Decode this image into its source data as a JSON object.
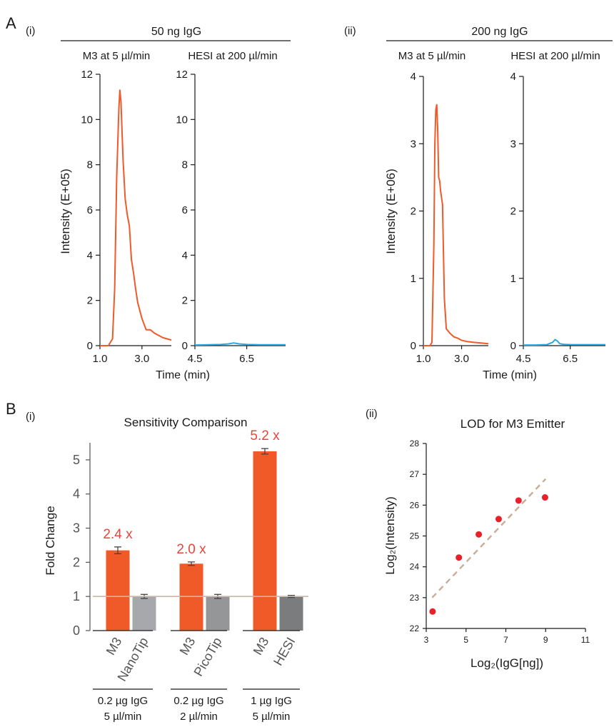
{
  "labels": {
    "A": "A",
    "A_i": "(i)",
    "A_ii": "(ii)",
    "B": "B",
    "B_i": "(i)",
    "B_ii": "(ii)"
  },
  "chart_data": [
    {
      "type": "line",
      "group_title": "50 ng IgG",
      "title": "M3 at 5 µl/min",
      "ylabel": "Intensity (E+05)",
      "xlabel": "",
      "ylim": [
        0,
        12
      ],
      "yticks": [
        "0",
        "2",
        "4",
        "6",
        "8",
        "10",
        "12"
      ],
      "xlim": [
        1.0,
        4.4
      ],
      "xticks": [
        "1.0",
        "3.0"
      ],
      "color": "#f05a28",
      "series": [
        {
          "x": [
            1.0,
            1.4,
            1.6,
            1.7,
            1.8,
            1.9,
            1.95,
            2.0,
            2.05,
            2.1,
            2.2,
            2.3,
            2.4,
            2.5,
            2.6,
            2.7,
            2.8,
            3.0,
            3.2,
            3.4,
            3.6,
            3.8,
            4.0,
            4.2,
            4.4
          ],
          "y": [
            0,
            0,
            0.3,
            2.5,
            7.5,
            10.5,
            11.3,
            10.8,
            9.5,
            8.2,
            6.5,
            5.8,
            5.3,
            3.8,
            3.2,
            2.5,
            1.9,
            1.2,
            0.7,
            0.7,
            0.55,
            0.45,
            0.35,
            0.3,
            0.25
          ]
        }
      ]
    },
    {
      "type": "line",
      "title": "HESI at 200 µl/min",
      "ylabel": "",
      "xlabel": "Time (min)",
      "ylim": [
        0,
        12
      ],
      "yticks": [
        "0",
        "2",
        "4",
        "6",
        "8",
        "10",
        "12"
      ],
      "xlim": [
        4.5,
        8.0
      ],
      "xticks": [
        "4.5",
        "6.5"
      ],
      "color": "#29a9e0",
      "series": [
        {
          "x": [
            4.5,
            5.0,
            5.5,
            5.8,
            6.0,
            6.2,
            6.5,
            7.0,
            7.5,
            8.0
          ],
          "y": [
            0.03,
            0.04,
            0.05,
            0.08,
            0.12,
            0.08,
            0.05,
            0.04,
            0.04,
            0.04
          ]
        }
      ]
    },
    {
      "type": "line",
      "group_title": "200 ng IgG",
      "title": "M3 at 5 µl/min",
      "ylabel": "Intensity (E+06)",
      "xlabel": "",
      "ylim": [
        0,
        4
      ],
      "yticks": [
        "0",
        "1",
        "2",
        "3",
        "4"
      ],
      "xlim": [
        1.0,
        4.4
      ],
      "xticks": [
        "1.0",
        "3.0"
      ],
      "color": "#f05a28",
      "series": [
        {
          "x": [
            1.0,
            1.35,
            1.45,
            1.55,
            1.6,
            1.65,
            1.7,
            1.75,
            1.8,
            1.85,
            1.9,
            2.0,
            2.05,
            2.1,
            2.2,
            2.4,
            2.6,
            2.8,
            3.0,
            3.3,
            3.6,
            4.0,
            4.4
          ],
          "y": [
            0,
            0,
            0.05,
            1.5,
            3.0,
            3.5,
            3.58,
            3.2,
            2.5,
            2.45,
            2.3,
            2.1,
            1.4,
            0.7,
            0.25,
            0.18,
            0.13,
            0.11,
            0.08,
            0.06,
            0.05,
            0.04,
            0.03
          ]
        }
      ]
    },
    {
      "type": "line",
      "title": "HESI at 200 µl/min",
      "ylabel": "",
      "xlabel": "Time (min)",
      "ylim": [
        0,
        4
      ],
      "yticks": [
        "0",
        "1",
        "2",
        "3",
        "4"
      ],
      "xlim": [
        4.5,
        8.0
      ],
      "xticks": [
        "4.5",
        "6.5"
      ],
      "color": "#29a9e0",
      "series": [
        {
          "x": [
            4.5,
            5.0,
            5.5,
            5.75,
            5.85,
            5.95,
            6.05,
            6.2,
            6.5,
            7.0,
            7.5,
            8.0
          ],
          "y": [
            0.01,
            0.01,
            0.015,
            0.05,
            0.09,
            0.07,
            0.03,
            0.02,
            0.015,
            0.015,
            0.015,
            0.015
          ]
        }
      ]
    },
    {
      "type": "bar",
      "title": "Sensitivity Comparison",
      "ylabel": "Fold Change",
      "ylim": [
        0,
        5.5
      ],
      "yticks": [
        "0",
        "1",
        "2",
        "3",
        "4",
        "5"
      ],
      "reference_line": 1,
      "groups": [
        {
          "label_line1": "0.2 µg IgG",
          "label_line2": "5 µl/min",
          "annotation": "2.4 x",
          "bars": [
            {
              "category": "M3",
              "value": 2.35,
              "error": 0.1,
              "color": "#f05a28"
            },
            {
              "category": "NanoTip",
              "value": 1.0,
              "error": 0.06,
              "color": "#a6a8ab"
            }
          ]
        },
        {
          "label_line1": "0.2 µg IgG",
          "label_line2": "2 µl/min",
          "annotation": "2.0 x",
          "bars": [
            {
              "category": "M3",
              "value": 1.96,
              "error": 0.05,
              "color": "#f05a28"
            },
            {
              "category": "PicoTip",
              "value": 1.0,
              "error": 0.06,
              "color": "#949698"
            }
          ]
        },
        {
          "label_line1": "1 µg IgG",
          "label_line2": "5 µl/min",
          "annotation": "5.2 x",
          "bars": [
            {
              "category": "M3",
              "value": 5.25,
              "error": 0.08,
              "color": "#f05a28"
            },
            {
              "category": "HESI",
              "value": 1.0,
              "error": 0.03,
              "color": "#7a7c7e"
            }
          ]
        }
      ]
    },
    {
      "type": "scatter",
      "title": "LOD for M3 Emitter",
      "xlabel": "Log₂(IgG[ng])",
      "ylabel": "Log₂(Intensity)",
      "xlim": [
        3,
        11
      ],
      "ylim": [
        22,
        28
      ],
      "xticks": [
        "3",
        "5",
        "7",
        "9",
        "11"
      ],
      "yticks": [
        "22",
        "23",
        "24",
        "25",
        "26",
        "27",
        "28"
      ],
      "point_color": "#e8202a",
      "trend_color": "#c9ad96",
      "x": [
        3.32,
        4.64,
        5.64,
        6.64,
        7.64,
        8.97
      ],
      "y": [
        22.55,
        24.3,
        25.05,
        25.55,
        26.15,
        26.25
      ],
      "trendline": {
        "x": [
          3.3,
          9.0
        ],
        "y": [
          23.0,
          26.85
        ]
      }
    }
  ]
}
